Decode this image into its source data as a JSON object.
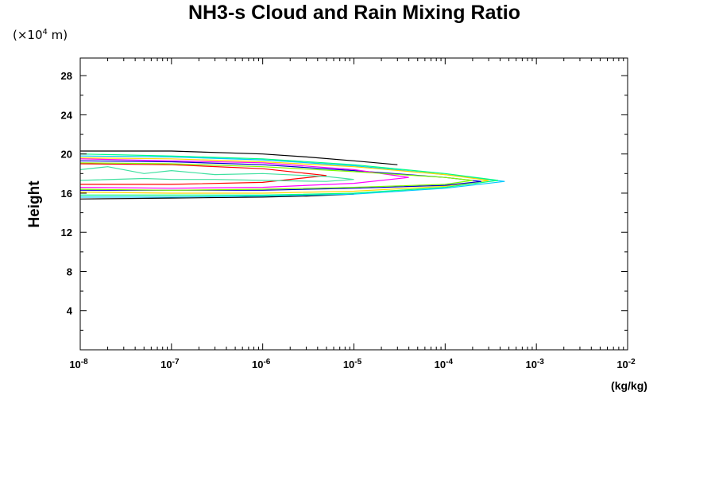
{
  "chart_data": {
    "type": "line",
    "title": "NH3-s Cloud and Rain Mixing Ratio",
    "ylabel": "Height",
    "yunit_prefix": "(×10",
    "yunit_exp": "4",
    "yunit_suffix": " m)",
    "xunit": "(kg/kg)",
    "xscale": "log",
    "xlim": [
      1e-08,
      0.01
    ],
    "ylim": [
      0,
      29.8
    ],
    "x_ticks": [
      {
        "base": "10",
        "exp": "-8",
        "value": 1e-08
      },
      {
        "base": "10",
        "exp": "-7",
        "value": 1e-07
      },
      {
        "base": "10",
        "exp": "-6",
        "value": 1e-06
      },
      {
        "base": "10",
        "exp": "-5",
        "value": 1e-05
      },
      {
        "base": "10",
        "exp": "-4",
        "value": 0.0001
      },
      {
        "base": "10",
        "exp": "-3",
        "value": 0.001
      },
      {
        "base": "10",
        "exp": "-2",
        "value": 0.01
      }
    ],
    "y_ticks": [
      4,
      8,
      12,
      16,
      20,
      24,
      28
    ],
    "grid": false,
    "legend": "none",
    "series": [
      {
        "color": "#000000",
        "x": [
          1e-08,
          1e-07,
          1e-06,
          3e-06,
          1e-05,
          3e-05
        ],
        "y": [
          20.3,
          20.3,
          20.0,
          19.7,
          19.3,
          18.9
        ]
      },
      {
        "color": "#000000",
        "x": [
          1e-08,
          1e-07,
          1e-06,
          3e-06,
          1e-05
        ],
        "y": [
          15.4,
          15.5,
          15.6,
          15.7,
          15.9
        ]
      },
      {
        "color": "#00c8ff",
        "x": [
          1e-08,
          1e-07,
          1e-06,
          1e-05,
          0.0001,
          0.00045,
          0.0001,
          1e-05,
          1e-06,
          1e-07,
          1e-08
        ],
        "y": [
          19.8,
          19.7,
          19.4,
          18.8,
          17.9,
          17.2,
          16.5,
          15.9,
          15.7,
          15.6,
          15.6
        ]
      },
      {
        "color": "#00ff80",
        "x": [
          1e-08,
          1e-07,
          1e-06,
          1e-05,
          0.0001,
          0.00038,
          0.0001,
          1e-05,
          1e-06,
          1e-07,
          1e-08
        ],
        "y": [
          20.0,
          19.8,
          19.5,
          18.9,
          18.0,
          17.3,
          16.6,
          16.0,
          15.8,
          15.8,
          15.8
        ]
      },
      {
        "color": "#ffd700",
        "x": [
          1e-08,
          1e-07,
          1e-06,
          1e-05,
          0.0001,
          0.0003,
          0.0001,
          1e-05,
          1e-06,
          1e-07,
          1e-08
        ],
        "y": [
          19.6,
          19.5,
          19.2,
          18.7,
          17.9,
          17.3,
          16.7,
          16.2,
          16.0,
          16.0,
          16.1
        ]
      },
      {
        "color": "#0000cc",
        "x": [
          1e-08,
          1e-07,
          1e-06,
          1e-05,
          0.0001,
          0.00025,
          0.0001,
          1e-05,
          1e-06,
          1e-07,
          1e-08
        ],
        "y": [
          19.3,
          19.2,
          18.9,
          18.3,
          17.6,
          17.2,
          16.8,
          16.5,
          16.3,
          16.3,
          16.3
        ]
      },
      {
        "color": "#ff00ff",
        "x": [
          1e-08,
          1e-07,
          1e-06,
          1e-05,
          4e-05,
          1e-05,
          1e-06,
          1e-07,
          1e-08
        ],
        "y": [
          19.5,
          19.3,
          19.1,
          18.4,
          17.6,
          17.0,
          16.6,
          16.5,
          16.6
        ]
      },
      {
        "color": "#ff0000",
        "x": [
          1e-08,
          1e-07,
          1e-06,
          5e-06,
          1e-06,
          1e-07,
          1e-08
        ],
        "y": [
          19.0,
          18.9,
          18.5,
          17.8,
          17.1,
          16.9,
          16.9
        ]
      },
      {
        "color": "#7fff00",
        "x": [
          1e-08,
          1e-07,
          1e-06,
          1e-05,
          0.0001,
          0.0002,
          0.0001,
          1e-05,
          1e-06,
          1e-07,
          1e-08
        ],
        "y": [
          19.1,
          19.0,
          18.7,
          18.2,
          17.6,
          17.3,
          16.9,
          16.6,
          16.4,
          16.3,
          16.4
        ]
      },
      {
        "color": "#40e0a0",
        "x": [
          1e-08,
          2e-08,
          5e-08,
          1e-07,
          3e-07,
          1e-06,
          5e-06,
          1e-05,
          5e-06,
          1e-06,
          3e-07,
          1e-07,
          5e-08,
          1e-08
        ],
        "y": [
          18.4,
          18.7,
          18.0,
          18.3,
          17.9,
          18.0,
          17.7,
          17.4,
          17.2,
          17.3,
          17.4,
          17.4,
          17.5,
          17.3
        ]
      }
    ]
  }
}
